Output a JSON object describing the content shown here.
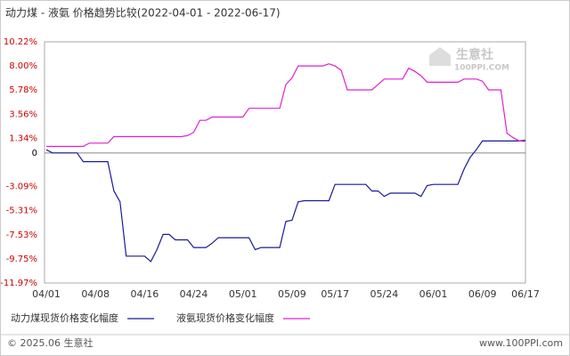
{
  "chart_data": {
    "type": "line",
    "title": "动力煤 - 液氨 价格趋势比较(2022-04-01 - 2022-06-17)",
    "categories": [
      "04/01",
      null,
      null,
      null,
      null,
      null,
      null,
      null,
      "04/08",
      null,
      null,
      null,
      null,
      null,
      null,
      null,
      "04/16",
      null,
      null,
      null,
      null,
      null,
      null,
      null,
      "04/24",
      null,
      null,
      null,
      null,
      null,
      null,
      null,
      "05/01",
      null,
      null,
      null,
      null,
      null,
      null,
      null,
      "05/09",
      null,
      null,
      null,
      null,
      null,
      null,
      "05/17",
      null,
      null,
      null,
      null,
      null,
      null,
      null,
      "05/24",
      null,
      null,
      null,
      null,
      null,
      null,
      null,
      "06/01",
      null,
      null,
      null,
      null,
      null,
      null,
      null,
      "06/09",
      null,
      null,
      null,
      null,
      null,
      null,
      "06/17"
    ],
    "series": [
      {
        "name": "动力煤现货价格变化幅度",
        "color": "#1a1a99",
        "values": [
          0.3,
          0,
          0,
          0,
          0,
          0,
          -0.8,
          -0.8,
          -0.8,
          -0.8,
          -0.8,
          -3.5,
          -4.5,
          -9.5,
          -9.5,
          -9.5,
          -9.5,
          -10.0,
          -8.9,
          -7.5,
          -7.5,
          -8.0,
          -8.0,
          -8.0,
          -8.7,
          -8.7,
          -8.7,
          -8.3,
          -7.8,
          -7.8,
          -7.8,
          -7.8,
          -7.8,
          -7.8,
          -8.9,
          -8.7,
          -8.7,
          -8.7,
          -8.7,
          -6.3,
          -6.2,
          -4.5,
          -4.4,
          -4.4,
          -4.4,
          -4.4,
          -4.4,
          -2.9,
          -2.9,
          -2.9,
          -2.9,
          -2.9,
          -2.9,
          -3.5,
          -3.5,
          -4.0,
          -3.7,
          -3.7,
          -3.7,
          -3.7,
          -3.7,
          -4.0,
          -3.0,
          -2.9,
          -2.9,
          -2.9,
          -2.9,
          -2.9,
          -1.5,
          -0.4,
          0.3,
          1.1,
          1.1,
          1.1,
          1.1,
          1.1,
          1.1,
          1.1,
          1.1
        ]
      },
      {
        "name": "液氨现货价格变化幅度",
        "color": "#e020d0",
        "values": [
          0.6,
          0.6,
          0.6,
          0.6,
          0.6,
          0.6,
          0.6,
          0.9,
          0.9,
          0.9,
          0.9,
          1.5,
          1.5,
          1.5,
          1.5,
          1.5,
          1.5,
          1.5,
          1.5,
          1.5,
          1.5,
          1.5,
          1.5,
          1.6,
          1.9,
          3.0,
          3.0,
          3.3,
          3.3,
          3.3,
          3.3,
          3.3,
          3.3,
          4.1,
          4.1,
          4.1,
          4.1,
          4.1,
          4.1,
          6.3,
          6.9,
          8.0,
          8.0,
          8.0,
          8.0,
          8.0,
          8.2,
          8.0,
          7.6,
          5.8,
          5.8,
          5.8,
          5.8,
          5.8,
          6.3,
          6.8,
          6.8,
          6.8,
          6.8,
          7.8,
          7.5,
          7.1,
          6.5,
          6.5,
          6.5,
          6.5,
          6.5,
          6.5,
          6.8,
          6.8,
          6.8,
          6.6,
          5.8,
          5.8,
          5.8,
          1.8,
          1.4,
          1.1,
          1.2
        ]
      }
    ],
    "ylim": [
      -11.97,
      10.22
    ],
    "yticks": [
      {
        "value": 10.22,
        "label": "10.22%"
      },
      {
        "value": 8.0,
        "label": "8.00%"
      },
      {
        "value": 5.78,
        "label": "5.78%"
      },
      {
        "value": 3.56,
        "label": "3.56%"
      },
      {
        "value": 1.34,
        "label": "1.34%"
      },
      0,
      {
        "value": -3.09,
        "label": "-3.09%"
      },
      {
        "value": -5.31,
        "label": "-5.31%"
      },
      {
        "value": -7.53,
        "label": "-7.53%"
      },
      {
        "value": -9.75,
        "label": "-9.75%"
      },
      {
        "value": -11.97,
        "label": "-11.97%"
      }
    ],
    "watermark": [
      "生意社",
      "100PPI.COM"
    ],
    "footer": {
      "left": "© 2025.06 生意社",
      "right": "www.100PPI.com"
    }
  }
}
